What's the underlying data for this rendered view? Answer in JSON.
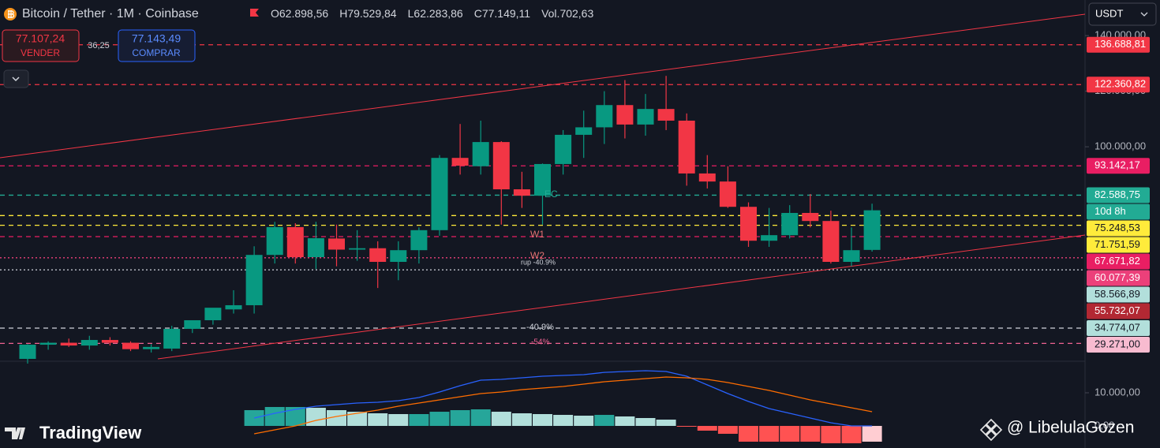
{
  "header": {
    "symbol": "Bitcoin / Tether · 1M · Coinbase",
    "ohlc": [
      {
        "key": "O",
        "value": "62.898,56"
      },
      {
        "key": "H",
        "value": "79.529,84"
      },
      {
        "key": "L",
        "value": "62.283,86"
      },
      {
        "key": "C",
        "value": "77.149,11"
      },
      {
        "key": "Vol.",
        "value": "702,63"
      }
    ],
    "sell": {
      "price": "77.107,24",
      "label": "VENDER"
    },
    "spread": "36,25",
    "buy": {
      "price": "77.143,49",
      "label": "COMPRAR"
    },
    "currency": "USDT"
  },
  "chart_data": {
    "type": "candlestick",
    "open": [
      23700,
      28800,
      29500,
      28500,
      30500,
      29500,
      27200,
      27400,
      34500,
      37600,
      41500,
      43000,
      61100,
      71100,
      60300,
      67000,
      63000,
      63500,
      58600,
      62800,
      70000,
      96000,
      93000,
      101700,
      84700,
      82400,
      93800,
      104300,
      107000,
      115000,
      108000,
      113600,
      109400,
      90400,
      87500,
      78400,
      66200,
      68200,
      76200,
      73300,
      58600,
      62898.56
    ],
    "high": [
      29000,
      30000,
      31000,
      32000,
      31500,
      30000,
      29000,
      35600,
      37000,
      42000,
      48400,
      64200,
      73000,
      72500,
      73000,
      72000,
      70000,
      66000,
      66000,
      71000,
      97000,
      108200,
      109400,
      102000,
      91000,
      94000,
      106000,
      113000,
      120000,
      124000,
      119000,
      125500,
      112000,
      97000,
      93000,
      80000,
      78000,
      79000,
      83000,
      77000,
      71000,
      79529.84
    ],
    "low": [
      22000,
      27000,
      28000,
      27000,
      28500,
      26500,
      26000,
      26500,
      33000,
      36000,
      40000,
      40000,
      58000,
      58000,
      56000,
      57000,
      59000,
      49200,
      52000,
      58000,
      68000,
      90000,
      90000,
      72000,
      78000,
      72000,
      90000,
      96000,
      101000,
      103000,
      104000,
      106000,
      86000,
      85000,
      78000,
      64000,
      64000,
      67000,
      71000,
      58000,
      57000,
      62283.86
    ],
    "close": [
      28800,
      29500,
      28500,
      30500,
      29500,
      27200,
      28000,
      34500,
      37600,
      42100,
      43000,
      61100,
      71100,
      60300,
      67100,
      63000,
      63500,
      58600,
      62800,
      70000,
      96000,
      93200,
      101700,
      84700,
      82400,
      93800,
      104300,
      107000,
      115000,
      108000,
      113600,
      109400,
      90400,
      87500,
      78400,
      66200,
      68200,
      76200,
      73300,
      58600,
      62800,
      77149.11
    ],
    "up_color": "#089981",
    "down_color": "#f23645",
    "ylim": [
      23700,
      152800
    ],
    "yticks": [
      {
        "value": 140000,
        "label": "140.000,00"
      },
      {
        "value": 120000,
        "label": "120.000,00"
      },
      {
        "value": 100000,
        "label": "100.000,00"
      }
    ],
    "grid": false,
    "countdown": "10d 8h",
    "countdown_color": "#22ab94",
    "levels": [
      {
        "value": 136688.81,
        "label": "136.688,81",
        "color": "#f23645",
        "text_color": "#ffffff",
        "style": "dashed"
      },
      {
        "value": 122360.82,
        "label": "122.360,82",
        "color": "#f23645",
        "text_color": "#ffffff",
        "style": "dashed"
      },
      {
        "value": 93142.17,
        "label": "93.142,17",
        "color": "#e91e63",
        "text_color": "#ffffff",
        "style": "dashed"
      },
      {
        "value": 82588.75,
        "label": "82.588,75",
        "color": "#22ab94",
        "text_color": "#ffffff",
        "style": "dashed"
      },
      {
        "value": 75248.53,
        "label": "75.248,53",
        "color": "#ffeb3b",
        "text_color": "#131722",
        "style": "dashed"
      },
      {
        "value": 71751.59,
        "label": "71.751,59",
        "color": "#ffeb3b",
        "text_color": "#131722",
        "style": "dashed"
      },
      {
        "value": 67671.82,
        "label": "67.671,82",
        "color": "#e91e63",
        "text_color": "#ffffff",
        "style": "dashed"
      },
      {
        "value": 60077.39,
        "label": "60.077,39",
        "color": "#ec407a",
        "text_color": "#ffffff",
        "style": "dotted"
      },
      {
        "value": 58566.89,
        "label": "58.566,89",
        "color": "#b2dfdb",
        "text_color": "#131722",
        "style": "none"
      },
      {
        "value": 55732.07,
        "label": "55.732,07",
        "color": "#b22833",
        "line_color": "#d1d4dc",
        "text_color": "#ffffff",
        "style": "dotted"
      },
      {
        "value": 34774.07,
        "label": "34.774,07",
        "color": "#b2dfdb",
        "line_color": "#d1d4dc",
        "text_color": "#131722",
        "style": "dashed"
      },
      {
        "value": 29271.0,
        "label": "29.271,00",
        "color": "#f8bbd0",
        "line_color": "#f06292",
        "text_color": "#131722",
        "style": "dashed"
      }
    ],
    "indicator": {
      "histogram": [
        null,
        null,
        null,
        null,
        null,
        null,
        null,
        null,
        null,
        null,
        null,
        4760,
        5710,
        5710,
        5470,
        4760,
        4280,
        3810,
        3570,
        3570,
        4280,
        4760,
        5000,
        4280,
        3810,
        3570,
        3330,
        3090,
        3330,
        2860,
        2380,
        1900,
        -240,
        -1430,
        -2380,
        -4760,
        -4760,
        -4760,
        -4760,
        -5240,
        -5240,
        -4760
      ],
      "macd": [
        null,
        null,
        null,
        null,
        null,
        null,
        null,
        null,
        null,
        null,
        null,
        2380,
        3810,
        5000,
        5950,
        6430,
        6900,
        7140,
        7620,
        8570,
        10230,
        12140,
        13800,
        14040,
        14520,
        14990,
        15230,
        15470,
        16180,
        16420,
        16660,
        16420,
        14990,
        12380,
        9760,
        7380,
        5240,
        3810,
        2380,
        950,
        0,
        0
      ],
      "signal": [
        null,
        null,
        null,
        null,
        null,
        null,
        null,
        null,
        null,
        null,
        null,
        -2380,
        -1190,
        0,
        1670,
        2860,
        3810,
        4760,
        5950,
        6900,
        7850,
        8810,
        9760,
        10230,
        10950,
        11420,
        11900,
        12610,
        13330,
        13800,
        14280,
        14760,
        14520,
        14040,
        13090,
        11900,
        10710,
        9280,
        7850,
        6660,
        5470,
        4280
      ],
      "macd_color": "#2962ff",
      "signal_color": "#ff6d00",
      "ylim": [
        -6670,
        19050
      ],
      "yticks": [
        {
          "value": 10000,
          "label": "10.000,00"
        },
        {
          "value": 0,
          "label": "0,00"
        }
      ]
    }
  },
  "annotations": {
    "ec": "EC",
    "w1": "W1",
    "w2": "W2",
    "rup": "rup -40.9%",
    "drop1": "-40.9%",
    "drop2": "-54%"
  },
  "watermark": {
    "logo": "TradingView",
    "author": "@ LibelulaGozen"
  }
}
